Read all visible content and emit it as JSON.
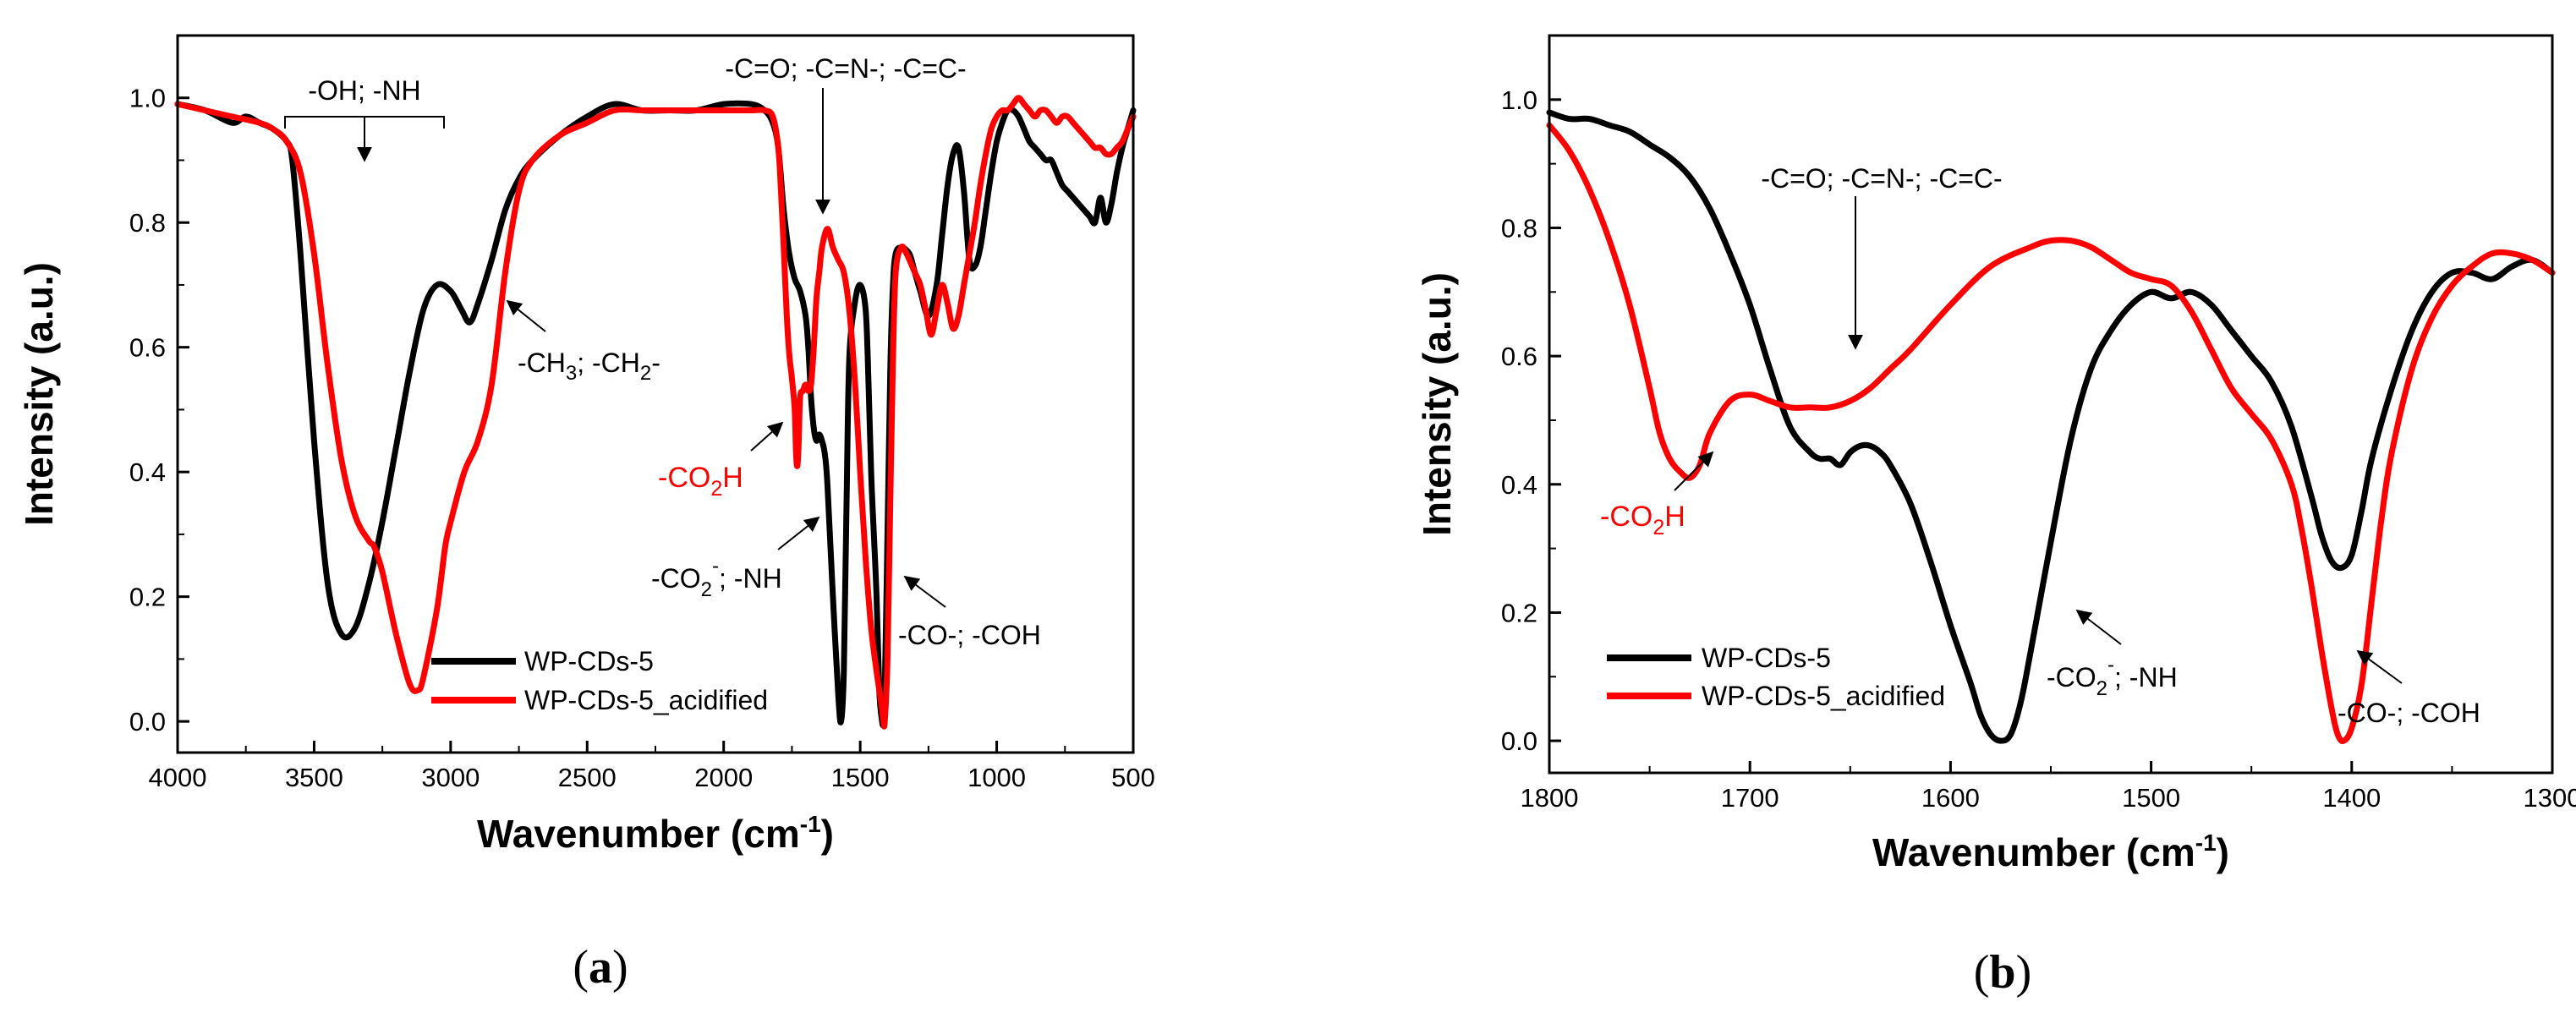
{
  "colors": {
    "series_1": "#000000",
    "series_2": "#ff0000",
    "red_annotation": "#ff0000"
  },
  "chart_data": [
    {
      "type": "line",
      "panel_label": "(a)",
      "panel_letter": "a",
      "xlabel": "Wavenumber (cm",
      "xlabel_sup": "-1",
      "xlabel_close": ")",
      "ylabel": "Intensity (a.u.)",
      "xlim": [
        4000,
        500
      ],
      "ylim": [
        -0.05,
        1.1
      ],
      "x_ticks": [
        4000,
        3500,
        3000,
        2500,
        2000,
        1500,
        1000,
        500
      ],
      "y_ticks": [
        0.0,
        0.2,
        0.4,
        0.6,
        0.8,
        1.0
      ],
      "x_tick_labels": [
        "4000",
        "3500",
        "3000",
        "2500",
        "2000",
        "1500",
        "1000",
        "500"
      ],
      "y_tick_labels": [
        "0.0",
        "0.2",
        "0.4",
        "0.6",
        "0.8",
        "1.0"
      ],
      "legend": {
        "position": "bottom-center",
        "entries": [
          "WP-CDs-5",
          "WP-CDs-5_acidified"
        ]
      },
      "annotations": {
        "oh_nh": "-OH; -NH",
        "ch": {
          "a": "-CH",
          "s1": "3",
          "b": "; -CH",
          "s2": "2",
          "c": "-"
        },
        "co_cn_cc": "-C=O; -C=N-; -C=C-",
        "co2h": {
          "a": "-CO",
          "s": "2",
          "b": "H"
        },
        "co2_nh": {
          "a": "-CO",
          "s": "2",
          "p": "-",
          "b": "; -NH"
        },
        "co_coh": "-CO-; -COH"
      },
      "series": [
        {
          "name": "WP-CDs-5",
          "color": "#000000",
          "x": [
            4000,
            3900,
            3800,
            3750,
            3700,
            3650,
            3600,
            3580,
            3550,
            3500,
            3450,
            3400,
            3350,
            3300,
            3250,
            3200,
            3150,
            3100,
            3050,
            3000,
            2960,
            2930,
            2900,
            2850,
            2800,
            2750,
            2700,
            2600,
            2500,
            2400,
            2300,
            2200,
            2100,
            2000,
            1900,
            1850,
            1820,
            1800,
            1780,
            1760,
            1740,
            1720,
            1700,
            1690,
            1680,
            1670,
            1660,
            1650,
            1640,
            1630,
            1620,
            1600,
            1580,
            1570,
            1560,
            1550,
            1540,
            1520,
            1500,
            1480,
            1470,
            1460,
            1450,
            1440,
            1430,
            1420,
            1415,
            1410,
            1400,
            1390,
            1380,
            1370,
            1350,
            1320,
            1300,
            1280,
            1250,
            1220,
            1200,
            1180,
            1160,
            1140,
            1120,
            1100,
            1080,
            1060,
            1040,
            1020,
            1000,
            980,
            960,
            940,
            920,
            900,
            880,
            860,
            840,
            820,
            800,
            780,
            760,
            740,
            720,
            700,
            680,
            660,
            640,
            620,
            600,
            580,
            560,
            540,
            520,
            500
          ],
          "y": [
            0.99,
            0.98,
            0.96,
            0.97,
            0.96,
            0.95,
            0.93,
            0.9,
            0.75,
            0.45,
            0.22,
            0.14,
            0.15,
            0.22,
            0.32,
            0.44,
            0.56,
            0.66,
            0.7,
            0.69,
            0.66,
            0.64,
            0.67,
            0.74,
            0.82,
            0.87,
            0.9,
            0.94,
            0.97,
            0.99,
            0.98,
            0.98,
            0.98,
            0.99,
            0.99,
            0.98,
            0.96,
            0.92,
            0.82,
            0.75,
            0.71,
            0.69,
            0.65,
            0.6,
            0.52,
            0.47,
            0.45,
            0.46,
            0.45,
            0.43,
            0.38,
            0.2,
            0.04,
            0.0,
            0.08,
            0.35,
            0.58,
            0.67,
            0.7,
            0.66,
            0.55,
            0.4,
            0.3,
            0.2,
            0.05,
            0.0,
            0.0,
            0.05,
            0.3,
            0.56,
            0.7,
            0.75,
            0.76,
            0.75,
            0.72,
            0.69,
            0.65,
            0.7,
            0.78,
            0.86,
            0.91,
            0.92,
            0.85,
            0.74,
            0.73,
            0.76,
            0.82,
            0.88,
            0.93,
            0.96,
            0.98,
            0.98,
            0.97,
            0.95,
            0.93,
            0.92,
            0.91,
            0.9,
            0.9,
            0.88,
            0.86,
            0.85,
            0.84,
            0.83,
            0.82,
            0.81,
            0.8,
            0.84,
            0.8,
            0.83,
            0.88,
            0.92,
            0.95,
            0.98
          ]
        },
        {
          "name": "WP-CDs-5_acidified",
          "color": "#ff0000",
          "x": [
            4000,
            3900,
            3800,
            3700,
            3650,
            3600,
            3550,
            3500,
            3450,
            3400,
            3350,
            3300,
            3280,
            3250,
            3200,
            3150,
            3120,
            3100,
            3050,
            3020,
            3000,
            2950,
            2900,
            2850,
            2800,
            2750,
            2700,
            2600,
            2500,
            2400,
            2300,
            2200,
            2100,
            2000,
            1900,
            1850,
            1820,
            1800,
            1790,
            1780,
            1770,
            1760,
            1750,
            1740,
            1735,
            1730,
            1725,
            1720,
            1710,
            1700,
            1690,
            1680,
            1670,
            1660,
            1650,
            1640,
            1620,
            1600,
            1580,
            1560,
            1540,
            1520,
            1500,
            1480,
            1460,
            1440,
            1420,
            1415,
            1410,
            1400,
            1390,
            1380,
            1370,
            1350,
            1330,
            1300,
            1280,
            1260,
            1240,
            1220,
            1200,
            1180,
            1160,
            1140,
            1120,
            1100,
            1080,
            1060,
            1040,
            1020,
            1000,
            980,
            960,
            940,
            920,
            900,
            880,
            860,
            840,
            820,
            800,
            780,
            760,
            740,
            720,
            700,
            680,
            660,
            640,
            620,
            600,
            580,
            560,
            540,
            520,
            500
          ],
          "y": [
            0.99,
            0.98,
            0.97,
            0.96,
            0.95,
            0.93,
            0.88,
            0.75,
            0.57,
            0.42,
            0.33,
            0.29,
            0.28,
            0.24,
            0.14,
            0.06,
            0.05,
            0.07,
            0.18,
            0.28,
            0.32,
            0.4,
            0.45,
            0.54,
            0.72,
            0.85,
            0.9,
            0.94,
            0.96,
            0.98,
            0.98,
            0.98,
            0.98,
            0.98,
            0.98,
            0.98,
            0.97,
            0.92,
            0.85,
            0.76,
            0.66,
            0.59,
            0.55,
            0.5,
            0.43,
            0.41,
            0.45,
            0.52,
            0.53,
            0.54,
            0.53,
            0.54,
            0.6,
            0.68,
            0.72,
            0.76,
            0.79,
            0.76,
            0.74,
            0.72,
            0.66,
            0.55,
            0.4,
            0.26,
            0.15,
            0.08,
            0.02,
            0.0,
            0.0,
            0.1,
            0.35,
            0.58,
            0.72,
            0.76,
            0.75,
            0.72,
            0.7,
            0.66,
            0.62,
            0.66,
            0.7,
            0.67,
            0.63,
            0.65,
            0.7,
            0.75,
            0.8,
            0.86,
            0.91,
            0.95,
            0.97,
            0.98,
            0.98,
            0.99,
            1.0,
            0.99,
            0.98,
            0.97,
            0.98,
            0.98,
            0.97,
            0.96,
            0.97,
            0.97,
            0.96,
            0.95,
            0.94,
            0.93,
            0.92,
            0.92,
            0.91,
            0.91,
            0.92,
            0.93,
            0.95,
            0.97
          ]
        }
      ]
    },
    {
      "type": "line",
      "panel_label": "(b)",
      "panel_letter": "b",
      "xlabel": "Wavenumber (cm",
      "xlabel_sup": "-1",
      "xlabel_close": ")",
      "ylabel": "Intensity (a.u.)",
      "xlim": [
        1800,
        1300
      ],
      "ylim": [
        -0.05,
        1.1
      ],
      "x_ticks": [
        1800,
        1700,
        1600,
        1500,
        1400,
        1300
      ],
      "y_ticks": [
        0.0,
        0.2,
        0.4,
        0.6,
        0.8,
        1.0
      ],
      "x_tick_labels": [
        "1800",
        "1700",
        "1600",
        "1500",
        "1400",
        "1300"
      ],
      "y_tick_labels": [
        "0.0",
        "0.2",
        "0.4",
        "0.6",
        "0.8",
        "1.0"
      ],
      "legend": {
        "position": "bottom-left",
        "entries": [
          "WP-CDs-5",
          "WP-CDs-5_acidified"
        ]
      },
      "annotations": {
        "co_cn_cc": "-C=O; -C=N-; -C=C-",
        "co2h": {
          "a": "-CO",
          "s": "2",
          "b": "H"
        },
        "co2_nh": {
          "a": "-CO",
          "s": "2",
          "p": "-",
          "b": "; -NH"
        },
        "co_coh": "-CO-; -COH"
      },
      "series": [
        {
          "name": "WP-CDs-5",
          "color": "#000000",
          "x": [
            1800,
            1790,
            1780,
            1770,
            1760,
            1750,
            1740,
            1730,
            1720,
            1710,
            1700,
            1690,
            1680,
            1670,
            1665,
            1660,
            1655,
            1650,
            1645,
            1640,
            1635,
            1630,
            1620,
            1610,
            1600,
            1590,
            1585,
            1580,
            1575,
            1570,
            1565,
            1560,
            1550,
            1540,
            1530,
            1520,
            1510,
            1500,
            1490,
            1480,
            1470,
            1460,
            1450,
            1440,
            1430,
            1420,
            1415,
            1410,
            1405,
            1400,
            1395,
            1390,
            1380,
            1370,
            1360,
            1350,
            1340,
            1330,
            1320,
            1310,
            1300
          ],
          "y": [
            0.98,
            0.97,
            0.97,
            0.96,
            0.95,
            0.93,
            0.91,
            0.88,
            0.83,
            0.76,
            0.68,
            0.58,
            0.49,
            0.45,
            0.44,
            0.44,
            0.43,
            0.45,
            0.46,
            0.46,
            0.45,
            0.43,
            0.37,
            0.28,
            0.18,
            0.09,
            0.04,
            0.01,
            0.0,
            0.01,
            0.06,
            0.14,
            0.31,
            0.47,
            0.58,
            0.64,
            0.68,
            0.7,
            0.69,
            0.7,
            0.68,
            0.64,
            0.6,
            0.56,
            0.49,
            0.38,
            0.32,
            0.28,
            0.27,
            0.29,
            0.36,
            0.44,
            0.55,
            0.64,
            0.7,
            0.73,
            0.73,
            0.72,
            0.74,
            0.75,
            0.73
          ]
        },
        {
          "name": "WP-CDs-5_acidified",
          "color": "#ff0000",
          "x": [
            1800,
            1790,
            1780,
            1770,
            1760,
            1750,
            1745,
            1740,
            1735,
            1730,
            1725,
            1720,
            1710,
            1700,
            1690,
            1680,
            1670,
            1660,
            1650,
            1640,
            1630,
            1620,
            1600,
            1580,
            1560,
            1550,
            1540,
            1530,
            1520,
            1510,
            1500,
            1490,
            1480,
            1470,
            1460,
            1450,
            1440,
            1430,
            1425,
            1420,
            1415,
            1410,
            1407,
            1404,
            1400,
            1395,
            1390,
            1385,
            1380,
            1370,
            1360,
            1350,
            1340,
            1330,
            1320,
            1310,
            1300
          ],
          "y": [
            0.96,
            0.92,
            0.86,
            0.78,
            0.68,
            0.55,
            0.48,
            0.44,
            0.42,
            0.41,
            0.43,
            0.48,
            0.53,
            0.54,
            0.53,
            0.52,
            0.52,
            0.52,
            0.53,
            0.55,
            0.58,
            0.61,
            0.68,
            0.74,
            0.77,
            0.78,
            0.78,
            0.77,
            0.75,
            0.73,
            0.72,
            0.71,
            0.67,
            0.61,
            0.55,
            0.51,
            0.47,
            0.4,
            0.33,
            0.24,
            0.14,
            0.05,
            0.01,
            0.0,
            0.02,
            0.09,
            0.22,
            0.35,
            0.45,
            0.58,
            0.66,
            0.71,
            0.74,
            0.76,
            0.76,
            0.75,
            0.73
          ]
        }
      ]
    }
  ]
}
